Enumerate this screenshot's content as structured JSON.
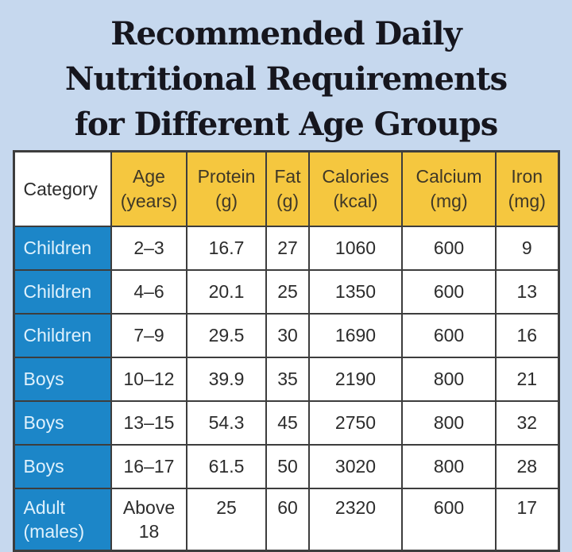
{
  "colors": {
    "background": "#c6d8ee",
    "header_yellow": "#f5c73f",
    "category_blue": "#1c86c8",
    "border": "#3d3d3d",
    "title_text": "#16161e",
    "cell_text": "#2c2c2c",
    "category_cell_text": "#dff1fc"
  },
  "title": {
    "full": "Recommended Daily Nutritional Requirements for Different Age Groups",
    "lines": [
      "Recommended Daily",
      "Nutritional Requirements",
      "for Different Age Groups"
    ]
  },
  "table": {
    "headers": [
      {
        "label": "Category",
        "unit": ""
      },
      {
        "label": "Age",
        "unit": "(years)"
      },
      {
        "label": "Protein",
        "unit": "(g)"
      },
      {
        "label": "Fat",
        "unit": "(g)"
      },
      {
        "label": "Calories",
        "unit": "(kcal)"
      },
      {
        "label": "Calcium",
        "unit": "(mg)"
      },
      {
        "label": "Iron",
        "unit": "(mg)"
      }
    ],
    "rows": [
      {
        "category": "Children",
        "age": "2–3",
        "protein": "16.7",
        "fat": "27",
        "calories": "1060",
        "calcium": "600",
        "iron": "9"
      },
      {
        "category": "Children",
        "age": "4–6",
        "protein": "20.1",
        "fat": "25",
        "calories": "1350",
        "calcium": "600",
        "iron": "13"
      },
      {
        "category": "Children",
        "age": "7–9",
        "protein": "29.5",
        "fat": "30",
        "calories": "1690",
        "calcium": "600",
        "iron": "16"
      },
      {
        "category": "Boys",
        "age": "10–12",
        "protein": "39.9",
        "fat": "35",
        "calories": "2190",
        "calcium": "800",
        "iron": "21"
      },
      {
        "category": "Boys",
        "age": "13–15",
        "protein": "54.3",
        "fat": "45",
        "calories": "2750",
        "calcium": "800",
        "iron": "32"
      },
      {
        "category": "Boys",
        "age": "16–17",
        "protein": "61.5",
        "fat": "50",
        "calories": "3020",
        "calcium": "800",
        "iron": "28"
      },
      {
        "category": "Adult (males)",
        "age": "Above 18",
        "protein": "25",
        "fat": "60",
        "calories": "2320",
        "calcium": "600",
        "iron": "17"
      }
    ]
  },
  "chart_data": {
    "type": "table",
    "title": "Recommended Daily Nutritional Requirements for Different Age Groups",
    "columns": [
      "Category",
      "Age (years)",
      "Protein (g)",
      "Fat (g)",
      "Calories (kcal)",
      "Calcium (mg)",
      "Iron (mg)"
    ],
    "rows": [
      [
        "Children",
        "2–3",
        16.7,
        27,
        1060,
        600,
        9
      ],
      [
        "Children",
        "4–6",
        20.1,
        25,
        1350,
        600,
        13
      ],
      [
        "Children",
        "7–9",
        29.5,
        30,
        1690,
        600,
        16
      ],
      [
        "Boys",
        "10–12",
        39.9,
        35,
        2190,
        800,
        21
      ],
      [
        "Boys",
        "13–15",
        54.3,
        45,
        2750,
        800,
        32
      ],
      [
        "Boys",
        "16–17",
        61.5,
        50,
        3020,
        800,
        28
      ],
      [
        "Adult (males)",
        "Above 18",
        25,
        60,
        2320,
        600,
        17
      ]
    ]
  }
}
